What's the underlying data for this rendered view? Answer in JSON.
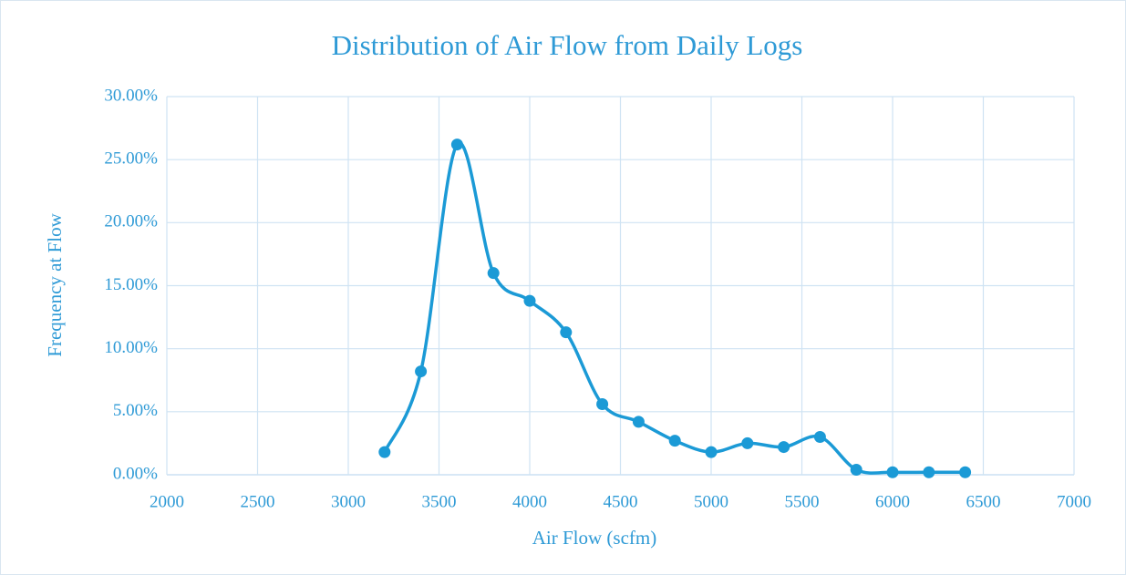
{
  "chart_data": {
    "type": "scatter",
    "title": "Distribution of Air Flow from Daily Logs",
    "xlabel": "Air Flow (scfm)",
    "ylabel": "Frequency at Flow",
    "series": [
      {
        "color": "#1b9ad6",
        "x": [
          3200,
          3400,
          3600,
          3800,
          4000,
          4200,
          4400,
          4600,
          4800,
          5000,
          5200,
          5400,
          5600,
          5800,
          6000,
          6200,
          6400
        ],
        "values": [
          1.8,
          8.2,
          26.2,
          16.0,
          13.8,
          11.3,
          5.6,
          4.2,
          2.7,
          1.8,
          2.5,
          2.2,
          3.0,
          0.4,
          0.2,
          0.2,
          0.2
        ]
      }
    ],
    "smooth": true,
    "xlim": [
      2000,
      7000
    ],
    "xticks": [
      2000,
      2500,
      3000,
      3500,
      4000,
      4500,
      5000,
      5500,
      6000,
      6500,
      7000
    ],
    "ylim": [
      0,
      30
    ],
    "yticks": [
      {
        "value": 0,
        "label": "0.00%"
      },
      {
        "value": 5,
        "label": "5.00%"
      },
      {
        "value": 10,
        "label": "10.00%"
      },
      {
        "value": 15,
        "label": "15.00%"
      },
      {
        "value": 20,
        "label": "20.00%"
      },
      {
        "value": 25,
        "label": "25.00%"
      },
      {
        "value": 30,
        "label": "30.00%"
      }
    ],
    "grid": true
  }
}
